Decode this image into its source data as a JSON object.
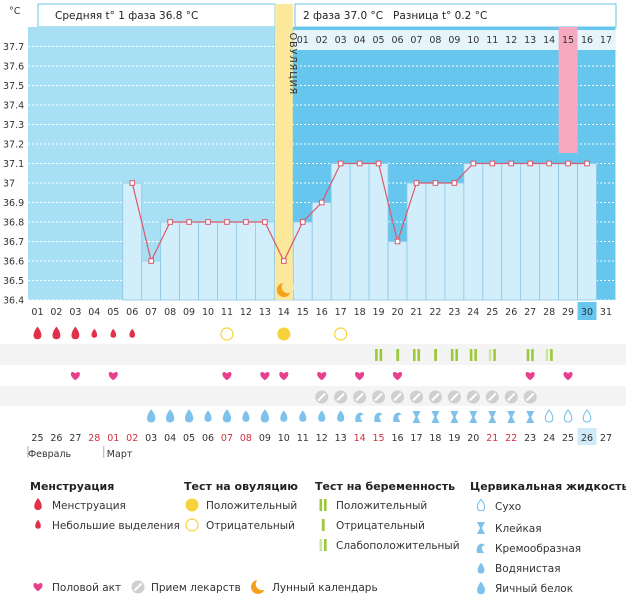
{
  "header": {
    "phase1": "Средняя t° 1 фаза  36.8 °C",
    "phase2": "2 фаза  37.0 °C",
    "diff": "Разница t° 0.2 °C",
    "ovulation_label": "ОВУЛЯЦИЯ"
  },
  "chart_data": {
    "type": "line",
    "unit": "°C",
    "ylim": [
      36.4,
      37.8
    ],
    "yticks": [
      "36.4",
      "36.5",
      "36.6",
      "36.7",
      "36.8",
      "36.9",
      "37",
      "37.1",
      "37.2",
      "37.3",
      "37.4",
      "37.5",
      "37.6",
      "37.7"
    ],
    "cycle_days": [
      1,
      2,
      3,
      4,
      5,
      6,
      7,
      8,
      9,
      10,
      11,
      12,
      13,
      14,
      15,
      16,
      17,
      18,
      19,
      20,
      21,
      22,
      23,
      24,
      25,
      26,
      27,
      28,
      29,
      30,
      31
    ],
    "temperature": [
      null,
      null,
      null,
      null,
      null,
      37.0,
      36.6,
      36.8,
      36.8,
      36.8,
      36.8,
      36.8,
      36.8,
      36.6,
      36.8,
      36.9,
      37.1,
      37.1,
      37.1,
      36.7,
      37.0,
      37.0,
      37.0,
      37.1,
      37.1,
      37.1,
      37.1,
      37.1,
      37.1,
      37.1,
      null
    ],
    "ovulation_day": 14,
    "post_ovulation_header": [
      "01",
      "02",
      "03",
      "04",
      "05",
      "06",
      "07",
      "08",
      "09",
      "10",
      "11",
      "12",
      "13",
      "14",
      "15",
      "16",
      "17"
    ],
    "highlight_header_day": "15",
    "highlight_cycle_day": "30",
    "cycle_labels": [
      "01",
      "02",
      "03",
      "04",
      "05",
      "06",
      "07",
      "08",
      "09",
      "10",
      "11",
      "12",
      "13",
      "14",
      "15",
      "16",
      "17",
      "18",
      "19",
      "20",
      "21",
      "22",
      "23",
      "24",
      "25",
      "26",
      "27",
      "28",
      "29",
      "30",
      "31"
    ],
    "dates": [
      "25",
      "26",
      "27",
      "28",
      "01",
      "02",
      "03",
      "04",
      "05",
      "06",
      "07",
      "08",
      "09",
      "10",
      "11",
      "12",
      "13",
      "14",
      "15",
      "16",
      "17",
      "18",
      "19",
      "20",
      "21",
      "22",
      "23",
      "24",
      "25",
      "26",
      "27"
    ],
    "red_date_indices": [
      3,
      4,
      5,
      10,
      11,
      17,
      18,
      24,
      25
    ],
    "highlight_date_index": 29,
    "months": [
      "Февраль",
      "Март"
    ],
    "menstruation": [
      "big",
      "big",
      "big",
      "small",
      "small",
      "small",
      "",
      "",
      "",
      "",
      "",
      "",
      "",
      "",
      "",
      "",
      "",
      "",
      "",
      "",
      "",
      "",
      "",
      "",
      "",
      "",
      "",
      "",
      "",
      "",
      ""
    ],
    "ovulation_tests": [
      "",
      "",
      "",
      "",
      "",
      "",
      "",
      "",
      "",
      "",
      "o",
      "",
      "",
      "p",
      "",
      "",
      "o",
      "",
      "",
      "",
      "",
      "",
      "",
      "",
      "",
      "",
      "",
      "",
      "",
      "",
      ""
    ],
    "pregnancy_tests": [
      "",
      "",
      "",
      "",
      "",
      "",
      "",
      "",
      "",
      "",
      "",
      "",
      "",
      "",
      "",
      "",
      "",
      "",
      "pos",
      "neg",
      "pos",
      "neg",
      "pos",
      "pos",
      "weak",
      "",
      "pos",
      "weak",
      "",
      "",
      ""
    ],
    "intercourse": [
      0,
      0,
      1,
      0,
      1,
      0,
      0,
      0,
      0,
      0,
      1,
      0,
      1,
      1,
      0,
      1,
      0,
      1,
      0,
      1,
      0,
      0,
      0,
      0,
      0,
      0,
      1,
      0,
      1,
      0,
      0
    ],
    "medication": [
      0,
      0,
      0,
      0,
      0,
      0,
      0,
      0,
      0,
      0,
      0,
      0,
      0,
      0,
      0,
      1,
      1,
      1,
      1,
      1,
      1,
      1,
      1,
      1,
      1,
      1,
      1,
      0,
      0,
      0,
      0
    ],
    "cervical": [
      "",
      "",
      "",
      "",
      "",
      "",
      "white",
      "white",
      "white",
      "water",
      "white",
      "water",
      "white",
      "water",
      "water",
      "water",
      "water",
      "cream",
      "cream",
      "cream",
      "sticky",
      "sticky",
      "sticky",
      "sticky",
      "sticky",
      "sticky",
      "sticky",
      "dry",
      "dry",
      "dry",
      ""
    ]
  },
  "legend": {
    "menstruation": {
      "title": "Менструация",
      "items": [
        "Менструация",
        "Небольшие выделения"
      ]
    },
    "ovulation_test": {
      "title": "Тест на овуляцию",
      "items": [
        "Положительный",
        "Отрицательный"
      ]
    },
    "pregnancy_test": {
      "title": "Тест на беременность",
      "items": [
        "Положительный",
        "Отрицательный",
        "Слабоположительный"
      ]
    },
    "cervical": {
      "title": "Цервикальная жидкость",
      "items": [
        "Сухо",
        "Клейкая",
        "Кремообразная",
        "Водянистая",
        "Яичный белок"
      ]
    },
    "bottom": [
      "Половой акт",
      "Прием лекарств",
      "Лунный календарь"
    ]
  },
  "colors": {
    "bg_phase1": "#a9dff4",
    "bg_phase2": "#66c6ee",
    "bar_fill": "#d3eefb",
    "bar_stroke": "#8cc8e6",
    "line": "#d85a6b",
    "ovulation": "#fbe89a",
    "highlight": "#f7a9bf",
    "red": "#e0304a",
    "heart": "#e8408f",
    "yellow": "#f6d33a",
    "moon": "#f3a21a",
    "drop_blue": "#7ec1ea",
    "med_grey": "#cfcfcf",
    "preg_green": "#9bc93b"
  }
}
